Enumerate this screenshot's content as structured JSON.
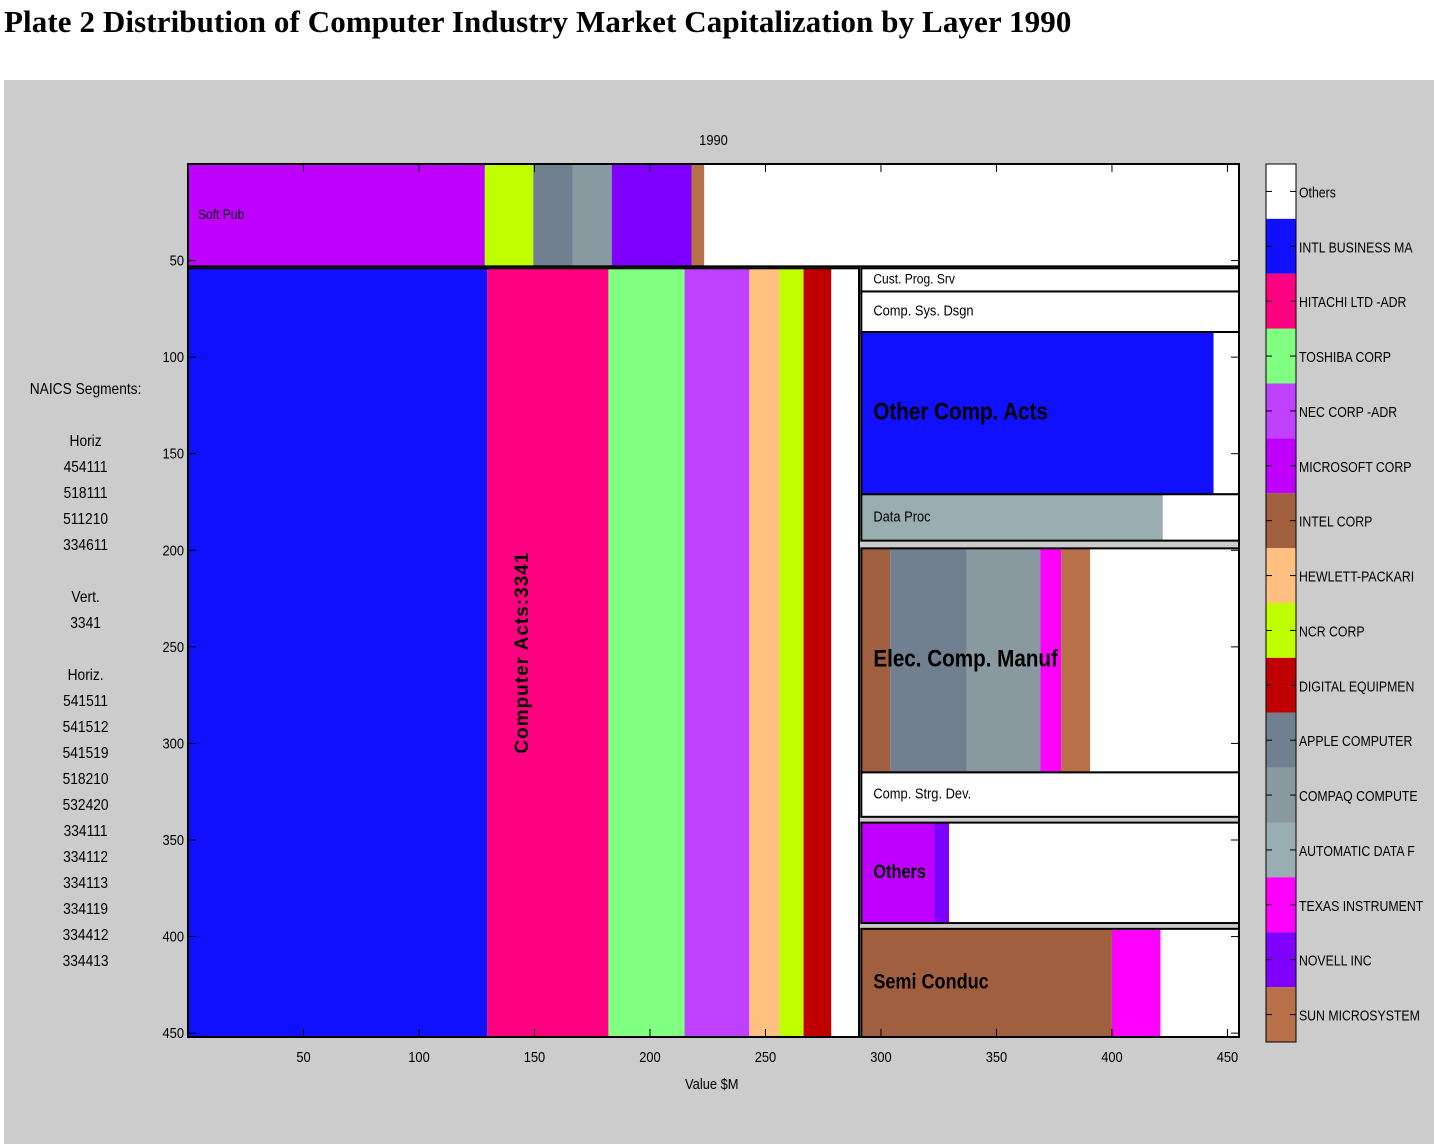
{
  "page_title": "Plate 2  Distribution of Computer Industry Market Capitalization by Layer 1990",
  "naics": {
    "heading": "NAICS Segments:",
    "groups": [
      {
        "label": "Horiz",
        "codes": [
          "454111",
          "518111",
          "511210",
          "334611"
        ]
      },
      {
        "label": "Vert.",
        "codes": [
          "3341"
        ]
      },
      {
        "label": "Horiz.",
        "codes": [
          "541511",
          "541512",
          "541519",
          "518210",
          "532420",
          "334111",
          "334112",
          "334113",
          "334119",
          "334412",
          "334413"
        ]
      }
    ]
  },
  "chart_data": {
    "type": "bar",
    "title": "1990",
    "xlabel": "Value $M",
    "ylabel": "",
    "xlim": [
      0,
      455
    ],
    "ylim": [
      452,
      0
    ],
    "xticks": [
      50,
      100,
      150,
      200,
      250,
      300,
      350,
      400,
      450
    ],
    "yticks": [
      50,
      100,
      150,
      200,
      250,
      300,
      350,
      400,
      450
    ],
    "legend_position": "right",
    "legend": [
      {
        "name": "Others",
        "color": "#ffffff"
      },
      {
        "name": "INTL BUSINESS MA",
        "color": "#1010ff"
      },
      {
        "name": "HITACHI LTD  -ADR",
        "color": "#ff0080"
      },
      {
        "name": "TOSHIBA CORP",
        "color": "#80ff80"
      },
      {
        "name": "NEC CORP  -ADR",
        "color": "#c040ff"
      },
      {
        "name": "MICROSOFT CORP",
        "color": "#c000ff"
      },
      {
        "name": "INTEL CORP",
        "color": "#a06040"
      },
      {
        "name": "HEWLETT-PACKARI",
        "color": "#ffc080"
      },
      {
        "name": "NCR CORP",
        "color": "#c0ff00"
      },
      {
        "name": "DIGITAL EQUIPMEN",
        "color": "#c00000"
      },
      {
        "name": "APPLE COMPUTER",
        "color": "#708090"
      },
      {
        "name": "COMPAQ COMPUTE",
        "color": "#8899a0"
      },
      {
        "name": "AUTOMATIC DATA F",
        "color": "#99aeb0"
      },
      {
        "name": "TEXAS INSTRUMENT",
        "color": "#ff00ff"
      },
      {
        "name": "NOVELL INC",
        "color": "#8000ff"
      },
      {
        "name": "SUN MICROSYSTEM",
        "color": "#b87048"
      }
    ],
    "segments": [
      {
        "label": "Soft Pub",
        "label_size": 14,
        "label_x": 10,
        "y0": 0,
        "y1": 53,
        "x0": 0,
        "companies": [
          {
            "name": "MICROSOFT CORP",
            "value": 128.5
          },
          {
            "name": "NCR CORP",
            "value": 21
          },
          {
            "name": "APPLE COMPUTER",
            "value": 17
          },
          {
            "name": "COMPAQ COMPUTE",
            "value": 17
          },
          {
            "name": "NOVELL INC",
            "value": 34.5
          },
          {
            "name": "SUN MICROSYSTEM",
            "value": 5.5
          },
          {
            "name": "Others",
            "value": 231.5
          }
        ]
      },
      {
        "label": "Computer Acts:3341",
        "label_size": 19,
        "label_x": 149,
        "label_vertical": true,
        "y0": 54,
        "y1": 452,
        "x0": 0,
        "companies": [
          {
            "name": "INTL BUSINESS MA",
            "value": 129.5
          },
          {
            "name": "HITACHI LTD  -ADR",
            "value": 52.5
          },
          {
            "name": "TOSHIBA CORP",
            "value": 33
          },
          {
            "name": "NEC CORP  -ADR",
            "value": 28
          },
          {
            "name": "HEWLETT-PACKARI",
            "value": 13
          },
          {
            "name": "NCR CORP",
            "value": 10.5
          },
          {
            "name": "DIGITAL EQUIPMEN",
            "value": 12
          },
          {
            "name": "Others",
            "value": 12
          }
        ]
      },
      {
        "label": "Cust. Prog. Srv",
        "label_size": 14,
        "label_x": 12,
        "y0": 54,
        "y1": 66,
        "x0": 291.5,
        "companies": [
          {
            "name": "Others",
            "value": 163.5
          }
        ]
      },
      {
        "label": "Comp. Sys. Dsgn",
        "label_size": 15,
        "label_x": 12,
        "y0": 66,
        "y1": 87,
        "x0": 291.5,
        "companies": [
          {
            "name": "Others",
            "value": 163.5
          }
        ]
      },
      {
        "label": "Other Comp. Acts",
        "label_size": 24,
        "label_x": 12,
        "y0": 87,
        "y1": 171,
        "x0": 291.5,
        "companies": [
          {
            "name": "INTL BUSINESS MA",
            "value": 152.5
          },
          {
            "name": "Others",
            "value": 11
          }
        ]
      },
      {
        "label": "Data Proc",
        "label_size": 15,
        "label_x": 12,
        "y0": 171,
        "y1": 195,
        "x0": 291.5,
        "companies": [
          {
            "name": "AUTOMATIC DATA F",
            "value": 130.5
          },
          {
            "name": "Others",
            "value": 33
          }
        ]
      },
      {
        "label": "Elec. Comp. Manuf",
        "label_size": 24,
        "label_x": 12,
        "y0": 199,
        "y1": 315,
        "x0": 291.5,
        "companies": [
          {
            "name": "INTEL CORP",
            "value": 12.5
          },
          {
            "name": "APPLE COMPUTER",
            "value": 33
          },
          {
            "name": "COMPAQ COMPUTE",
            "value": 32
          },
          {
            "name": "TEXAS INSTRUMENT",
            "value": 9
          },
          {
            "name": "SUN MICROSYSTEM",
            "value": 12.5
          },
          {
            "name": "Others",
            "value": 64.5
          }
        ]
      },
      {
        "label": "Comp. Strg. Dev.",
        "label_size": 15,
        "label_x": 12,
        "y0": 315,
        "y1": 338,
        "x0": 291.5,
        "companies": [
          {
            "name": "Others",
            "value": 163.5
          }
        ]
      },
      {
        "label": "Others",
        "label_size": 19,
        "label_x": 12,
        "y0": 341,
        "y1": 393,
        "x0": 291.5,
        "companies": [
          {
            "name": "MICROSOFT CORP",
            "value": 31.5
          },
          {
            "name": "NOVELL INC",
            "value": 6.5
          },
          {
            "name": "Others",
            "value": 125.5
          }
        ]
      },
      {
        "label": "Semi Conduc",
        "label_size": 21,
        "label_x": 12,
        "y0": 396,
        "y1": 452,
        "x0": 291.5,
        "companies": [
          {
            "name": "INTEL CORP",
            "value": 108.5
          },
          {
            "name": "TEXAS INSTRUMENT",
            "value": 21
          },
          {
            "name": "Others",
            "value": 34
          }
        ]
      }
    ]
  }
}
